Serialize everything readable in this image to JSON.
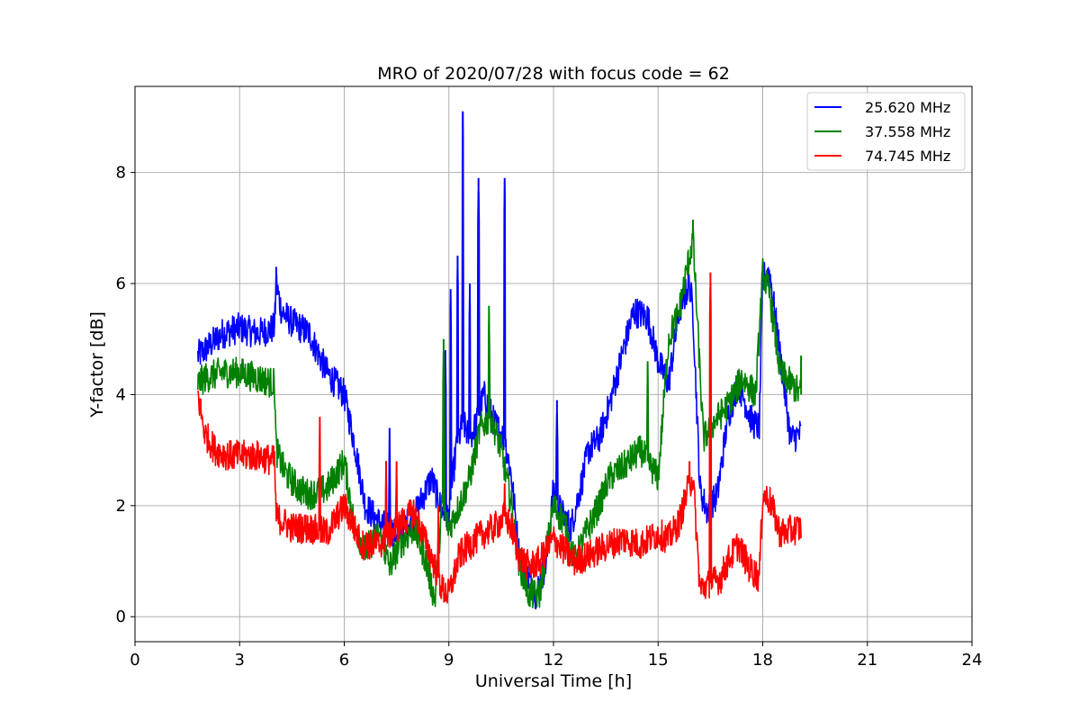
{
  "chart_data": {
    "type": "line",
    "title": "MRO of 2020/07/28 with focus code = 62",
    "xlabel": "Universal Time [h]",
    "ylabel": "Y-factor [dB]",
    "xlim": [
      0,
      24
    ],
    "ylim": [
      -0.45,
      9.55
    ],
    "xticks": [
      0,
      3,
      6,
      9,
      12,
      15,
      18,
      21,
      24
    ],
    "yticks": [
      0,
      2,
      4,
      6,
      8
    ],
    "grid": true,
    "legend_position": "top-right",
    "series": [
      {
        "name": "25.620 MHz",
        "color": "#0000ff",
        "x": [
          1.8,
          2.0,
          2.5,
          3.0,
          3.5,
          4.0,
          4.05,
          4.2,
          4.5,
          5.0,
          5.5,
          6.0,
          6.3,
          6.6,
          7.0,
          7.5,
          8.0,
          8.5,
          8.8,
          9.0,
          9.2,
          9.4,
          9.6,
          9.8,
          10.0,
          10.3,
          10.6,
          10.8,
          11.0,
          11.2,
          11.5,
          11.8,
          12.0,
          12.2,
          12.5,
          12.8,
          13.0,
          13.3,
          13.6,
          14.0,
          14.3,
          14.7,
          15.0,
          15.3,
          15.6,
          15.9,
          16.0,
          16.2,
          16.4,
          16.7,
          17.0,
          17.3,
          17.7,
          17.9,
          18.0,
          18.2,
          18.5,
          18.8,
          19.1
        ],
        "y": [
          4.7,
          4.8,
          5.1,
          5.2,
          5.1,
          5.2,
          6.0,
          5.5,
          5.3,
          5.1,
          4.4,
          4.0,
          3.1,
          2.0,
          1.7,
          1.5,
          1.8,
          2.5,
          1.9,
          1.8,
          3.0,
          3.5,
          3.2,
          3.5,
          4.0,
          3.5,
          3.2,
          2.5,
          1.2,
          0.8,
          0.4,
          1.0,
          2.3,
          1.9,
          1.6,
          2.4,
          3.0,
          3.2,
          3.8,
          4.8,
          5.5,
          5.4,
          4.6,
          4.2,
          5.5,
          6.0,
          5.5,
          2.3,
          1.9,
          2.2,
          3.6,
          4.2,
          3.5,
          3.4,
          6.1,
          6.2,
          4.7,
          3.2,
          3.3
        ],
        "spikes": [
          {
            "x": 4.05,
            "y": 6.3
          },
          {
            "x": 7.3,
            "y": 3.4
          },
          {
            "x": 8.9,
            "y": 4.8
          },
          {
            "x": 9.05,
            "y": 5.9
          },
          {
            "x": 9.25,
            "y": 6.5
          },
          {
            "x": 9.4,
            "y": 9.1
          },
          {
            "x": 9.6,
            "y": 6.0
          },
          {
            "x": 9.85,
            "y": 7.9
          },
          {
            "x": 10.6,
            "y": 7.9
          },
          {
            "x": 12.1,
            "y": 3.9
          }
        ]
      },
      {
        "name": "37.558 MHz",
        "color": "#008000",
        "x": [
          1.8,
          2.0,
          2.5,
          3.0,
          3.5,
          4.0,
          4.05,
          4.3,
          4.7,
          5.0,
          5.5,
          6.0,
          6.3,
          6.6,
          7.0,
          7.3,
          7.6,
          8.0,
          8.3,
          8.6,
          8.8,
          9.0,
          9.3,
          9.6,
          9.9,
          10.2,
          10.5,
          10.8,
          11.0,
          11.3,
          11.6,
          11.8,
          12.0,
          12.3,
          12.6,
          13.0,
          13.3,
          13.6,
          14.0,
          14.5,
          15.0,
          15.3,
          15.6,
          15.9,
          16.0,
          16.3,
          16.6,
          17.0,
          17.4,
          17.8,
          18.0,
          18.2,
          18.5,
          19.1
        ],
        "y": [
          4.2,
          4.3,
          4.4,
          4.4,
          4.3,
          4.2,
          3.0,
          2.6,
          2.3,
          2.2,
          2.3,
          2.8,
          1.6,
          1.2,
          1.5,
          0.9,
          1.3,
          1.6,
          1.1,
          0.3,
          2.0,
          1.6,
          2.0,
          2.5,
          3.4,
          3.6,
          3.0,
          2.0,
          1.0,
          0.4,
          0.4,
          1.2,
          2.0,
          1.7,
          1.0,
          1.6,
          2.0,
          2.5,
          2.7,
          3.0,
          2.5,
          5.0,
          5.5,
          6.5,
          6.8,
          3.2,
          3.5,
          3.8,
          4.3,
          4.0,
          6.2,
          5.8,
          4.4,
          4.0
        ],
        "spikes": [
          {
            "x": 8.85,
            "y": 5.0
          },
          {
            "x": 10.15,
            "y": 5.6
          },
          {
            "x": 14.7,
            "y": 4.6
          },
          {
            "x": 16.0,
            "y": 7.15
          },
          {
            "x": 19.1,
            "y": 4.7
          }
        ]
      },
      {
        "name": "74.745 MHz",
        "color": "#ff0000",
        "x": [
          1.8,
          2.0,
          2.3,
          2.7,
          3.0,
          3.5,
          4.0,
          4.05,
          4.5,
          5.0,
          5.5,
          6.0,
          6.5,
          7.0,
          7.5,
          8.0,
          8.3,
          8.6,
          8.8,
          9.0,
          9.3,
          9.6,
          10.0,
          10.3,
          10.6,
          10.8,
          11.0,
          11.3,
          11.6,
          12.0,
          12.3,
          12.6,
          13.0,
          13.3,
          13.6,
          14.0,
          14.5,
          15.0,
          15.3,
          15.6,
          15.9,
          16.0,
          16.2,
          16.5,
          16.8,
          17.0,
          17.3,
          17.6,
          17.9,
          18.0,
          18.2,
          18.5,
          19.1
        ],
        "y": [
          4.0,
          3.3,
          3.0,
          2.9,
          2.9,
          2.9,
          2.8,
          1.8,
          1.6,
          1.6,
          1.5,
          2.0,
          1.3,
          1.3,
          1.6,
          1.9,
          1.4,
          0.9,
          0.5,
          0.4,
          1.1,
          1.3,
          1.5,
          1.6,
          1.8,
          1.6,
          1.1,
          0.9,
          1.0,
          1.4,
          1.2,
          1.0,
          1.1,
          1.2,
          1.3,
          1.4,
          1.3,
          1.5,
          1.4,
          1.7,
          2.4,
          2.5,
          0.5,
          0.6,
          0.7,
          1.0,
          1.3,
          0.9,
          0.7,
          2.2,
          2.1,
          1.5,
          1.6
        ],
        "spikes": [
          {
            "x": 5.3,
            "y": 3.6
          },
          {
            "x": 7.2,
            "y": 2.8
          },
          {
            "x": 7.5,
            "y": 2.8
          },
          {
            "x": 8.7,
            "y": 2.0
          },
          {
            "x": 10.6,
            "y": 2.4
          },
          {
            "x": 16.5,
            "y": 6.2
          },
          {
            "x": 15.9,
            "y": 2.8
          }
        ]
      }
    ]
  }
}
